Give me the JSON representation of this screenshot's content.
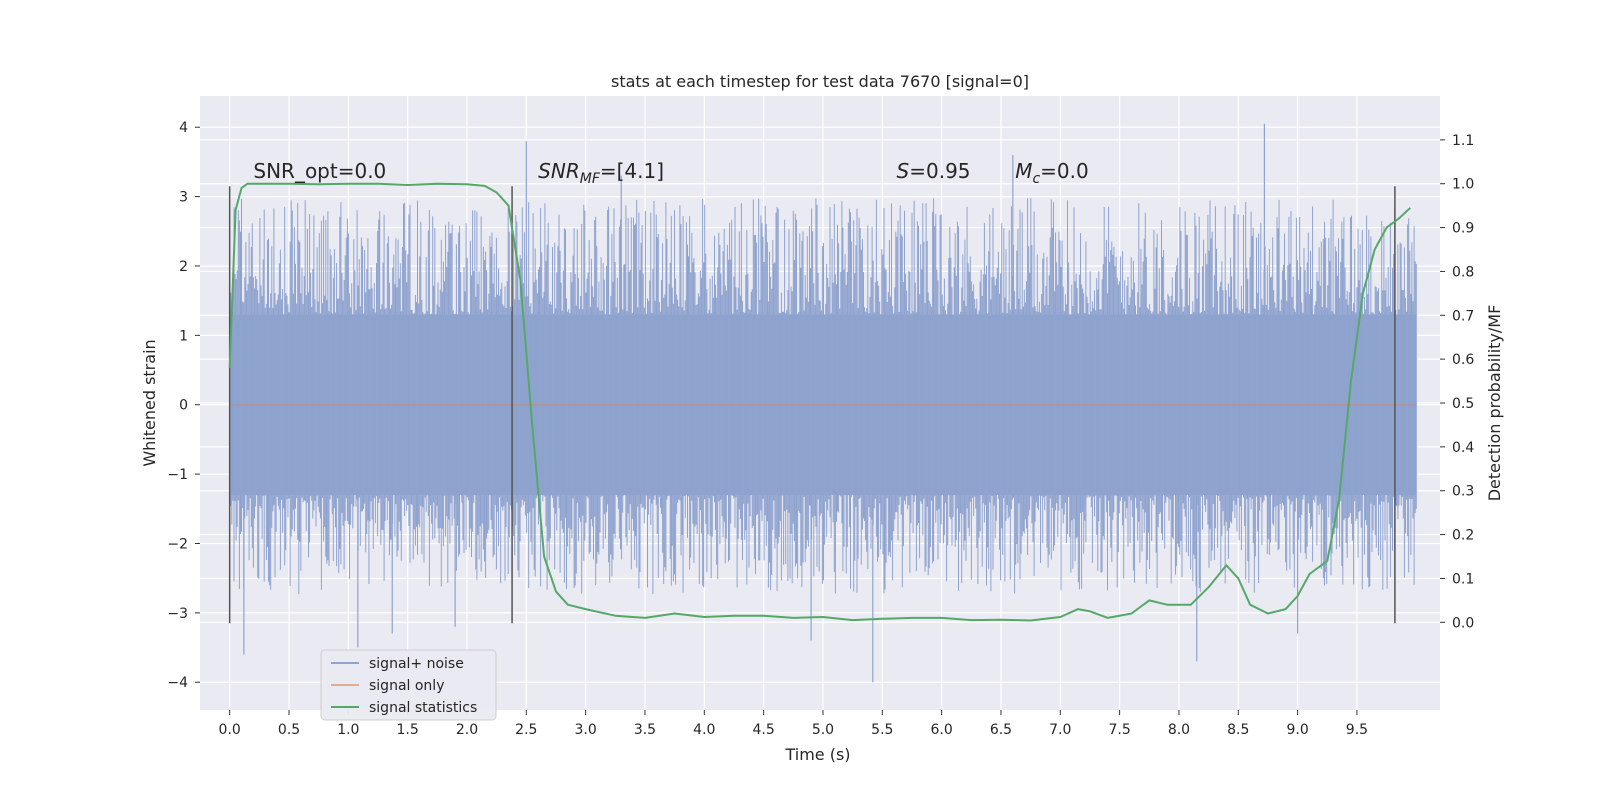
{
  "chart_data": {
    "type": "line",
    "title": "stats at each timestep for test data 7670 [signal=0]",
    "xlabel": "Time (s)",
    "ylabel": "Whitened strain",
    "y2label": "Detection probability/MF",
    "xlim": [
      -0.25,
      10.2
    ],
    "ylim": [
      -4.4,
      4.45
    ],
    "y2lim": [
      -0.2,
      1.2
    ],
    "xticks": [
      0.0,
      0.5,
      1.0,
      1.5,
      2.0,
      2.5,
      3.0,
      3.5,
      4.0,
      4.5,
      5.0,
      5.5,
      6.0,
      6.5,
      7.0,
      7.5,
      8.0,
      8.5,
      9.0,
      9.5
    ],
    "xtick_labels": [
      "0.0",
      "0.5",
      "1.0",
      "1.5",
      "2.0",
      "2.5",
      "3.0",
      "3.5",
      "4.0",
      "4.5",
      "5.0",
      "5.5",
      "6.0",
      "6.5",
      "7.0",
      "7.5",
      "8.0",
      "8.5",
      "9.0",
      "9.5"
    ],
    "yticks": [
      -4,
      -3,
      -2,
      -1,
      0,
      1,
      2,
      3,
      4
    ],
    "ytick_labels": [
      "−4",
      "−3",
      "−2",
      "−1",
      "0",
      "1",
      "2",
      "3",
      "4"
    ],
    "y2ticks": [
      0.0,
      0.1,
      0.2,
      0.3,
      0.4,
      0.5,
      0.6,
      0.7,
      0.8,
      0.9,
      1.0,
      1.1
    ],
    "y2tick_labels": [
      "0.0",
      "0.1",
      "0.2",
      "0.3",
      "0.4",
      "0.5",
      "0.6",
      "0.7",
      "0.8",
      "0.9",
      "1.0",
      "1.1"
    ],
    "grid": true,
    "legend": "lower-left",
    "series": [
      {
        "name": "signal+ noise",
        "color": "#8fa3cf",
        "axis": "left",
        "description": "dense whitened noise trace",
        "x_range": [
          0.0,
          10.0
        ],
        "envelope": {
          "core_low": -1.3,
          "core_high": 1.3,
          "typical_peak_high": 2.9,
          "typical_peak_low": -2.6,
          "max": 4.05,
          "min": -4.0
        }
      },
      {
        "name": "signal only",
        "color": "#dd8452",
        "axis": "left",
        "x": [
          0.0,
          10.0
        ],
        "y": [
          0.0,
          0.0
        ]
      },
      {
        "name": "signal statistics",
        "color": "#55a868",
        "axis": "right",
        "x": [
          0.0,
          0.05,
          0.1,
          0.15,
          0.2,
          0.3,
          0.5,
          0.75,
          1.0,
          1.25,
          1.5,
          1.75,
          2.0,
          2.15,
          2.25,
          2.35,
          2.45,
          2.55,
          2.65,
          2.75,
          2.85,
          3.0,
          3.25,
          3.5,
          3.75,
          4.0,
          4.25,
          4.5,
          4.75,
          5.0,
          5.25,
          5.5,
          5.75,
          6.0,
          6.25,
          6.5,
          6.75,
          7.0,
          7.15,
          7.25,
          7.4,
          7.6,
          7.75,
          7.9,
          8.1,
          8.25,
          8.4,
          8.5,
          8.6,
          8.75,
          8.9,
          9.0,
          9.1,
          9.25,
          9.35,
          9.45,
          9.55,
          9.65,
          9.75,
          9.85,
          9.95
        ],
        "y": [
          0.58,
          0.94,
          0.99,
          1.0,
          1.0,
          1.0,
          1.0,
          0.999,
          1.0,
          1.0,
          0.997,
          1.0,
          0.999,
          0.995,
          0.98,
          0.95,
          0.78,
          0.45,
          0.15,
          0.07,
          0.04,
          0.03,
          0.015,
          0.01,
          0.02,
          0.012,
          0.015,
          0.015,
          0.01,
          0.012,
          0.005,
          0.008,
          0.01,
          0.01,
          0.005,
          0.006,
          0.004,
          0.012,
          0.03,
          0.025,
          0.01,
          0.02,
          0.05,
          0.04,
          0.04,
          0.08,
          0.13,
          0.1,
          0.04,
          0.02,
          0.03,
          0.06,
          0.11,
          0.14,
          0.28,
          0.55,
          0.75,
          0.85,
          0.9,
          0.92,
          0.945
        ]
      }
    ],
    "vlines": [
      0.0,
      2.38,
      9.82
    ],
    "vline_range": [
      -3.15,
      3.15
    ],
    "annotations": [
      {
        "text": "SNR_opt=0.0",
        "x": 0.2,
        "y": 3.27
      },
      {
        "base": "SNR",
        "sub": "MF",
        "rest": "=[4.1]",
        "x": 2.6,
        "y": 3.27
      },
      {
        "base": "S",
        "sub": "",
        "rest": "=0.95",
        "x": 5.62,
        "y": 3.27
      },
      {
        "base": "M",
        "sub": "c",
        "rest": "=0.0",
        "x": 6.62,
        "y": 3.27
      }
    ]
  }
}
